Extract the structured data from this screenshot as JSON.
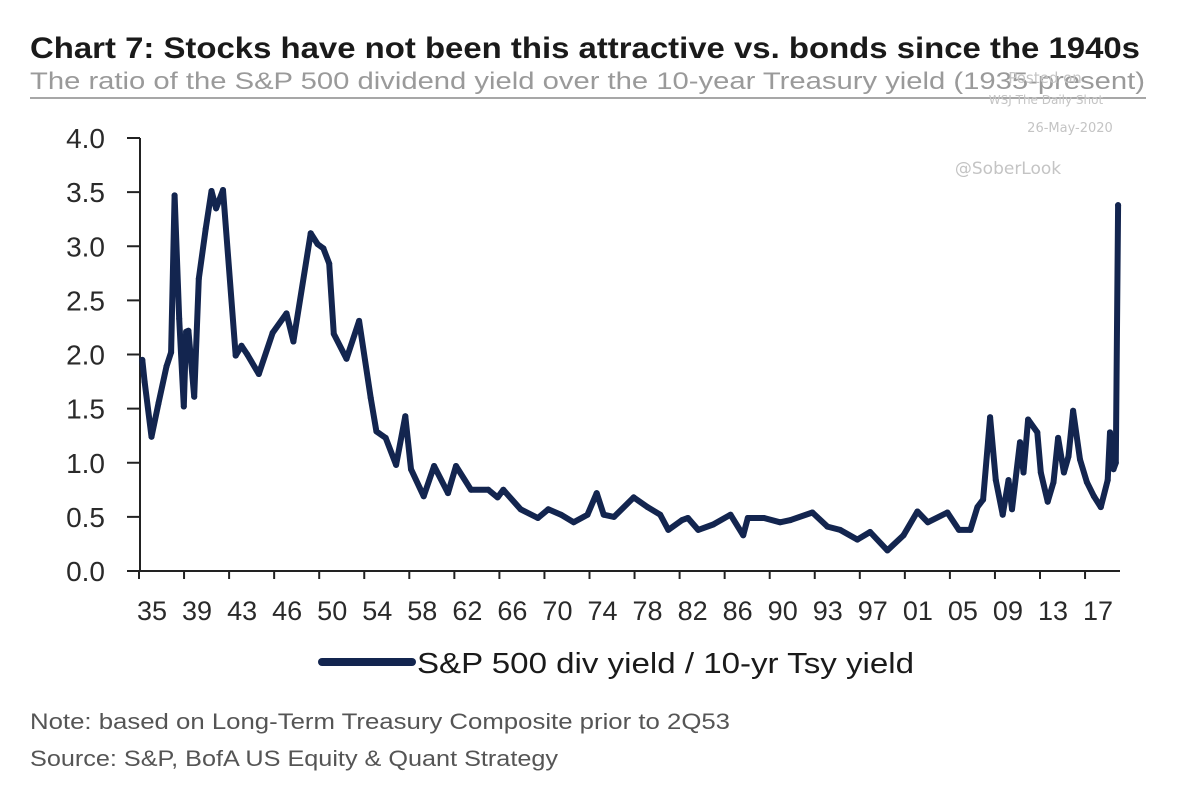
{
  "chart_data": {
    "type": "line",
    "title": "Chart 7: Stocks have not been this attractive vs. bonds since the 1940s",
    "subtitle": "The ratio of the S&P 500 dividend yield over the 10-year Treasury yield (1935-present)",
    "xlabel": "",
    "ylabel": "",
    "xlim": [
      1935,
      2020.4
    ],
    "ylim": [
      0,
      4
    ],
    "grid": false,
    "legend_position": "bottom-center",
    "y_ticks": [
      "0.0",
      "0.5",
      "1.0",
      "1.5",
      "2.0",
      "2.5",
      "3.0",
      "3.5",
      "4.0"
    ],
    "x_tick_labels": [
      "35",
      "39",
      "43",
      "46",
      "50",
      "54",
      "58",
      "62",
      "66",
      "70",
      "74",
      "78",
      "82",
      "86",
      "90",
      "93",
      "97",
      "01",
      "05",
      "09",
      "13",
      "17"
    ],
    "series": [
      {
        "name": "S&P 500 div yield / 10-yr Tsy yield",
        "color": "#13254f",
        "x": [
          1935.2,
          1935.4,
          1936.0,
          1936.6,
          1937.3,
          1937.7,
          1938.0,
          1938.4,
          1938.8,
          1939.0,
          1939.2,
          1939.7,
          1940.1,
          1940.7,
          1941.2,
          1941.6,
          1942.2,
          1943.3,
          1943.8,
          1944.3,
          1945.3,
          1946.5,
          1947.7,
          1948.3,
          1949.8,
          1950.4,
          1950.9,
          1951.4,
          1951.8,
          1952.9,
          1954.0,
          1955.0,
          1955.5,
          1956.3,
          1957.2,
          1958.0,
          1958.5,
          1959.6,
          1960.5,
          1961.7,
          1962.4,
          1963.7,
          1965.2,
          1966.0,
          1966.5,
          1968.0,
          1969.5,
          1970.4,
          1971.5,
          1972.6,
          1973.8,
          1974.6,
          1975.2,
          1976.1,
          1977.8,
          1979.0,
          1980.1,
          1980.8,
          1982.0,
          1982.5,
          1983.4,
          1984.7,
          1986.2,
          1987.3,
          1987.7,
          1989.1,
          1990.5,
          1991.4,
          1993.3,
          1994.6,
          1995.7,
          1997.2,
          1998.3,
          1999.8,
          2001.2,
          2002.4,
          2003.3,
          2005.0,
          2006.0,
          2007.0,
          2007.6,
          2008.1,
          2008.7,
          2009.2,
          2009.8,
          2010.3,
          2010.6,
          2011.3,
          2011.6,
          2012.0,
          2012.8,
          2013.1,
          2013.7,
          2014.2,
          2014.6,
          2015.1,
          2015.5,
          2015.9,
          2016.5,
          2017.1,
          2017.7,
          2018.3,
          2018.9,
          2019.1,
          2019.4,
          2019.6,
          2019.8
        ],
        "values": [
          1.95,
          1.75,
          1.24,
          1.55,
          1.89,
          2.02,
          3.47,
          2.33,
          1.52,
          2.21,
          2.22,
          1.61,
          2.7,
          3.16,
          3.51,
          3.35,
          3.52,
          1.99,
          2.08,
          2.0,
          1.82,
          2.2,
          2.38,
          2.12,
          3.12,
          3.02,
          2.98,
          2.84,
          2.19,
          1.96,
          2.31,
          1.6,
          1.29,
          1.23,
          0.98,
          1.43,
          0.94,
          0.69,
          0.97,
          0.72,
          0.97,
          0.75,
          0.75,
          0.68,
          0.75,
          0.57,
          0.49,
          0.57,
          0.52,
          0.45,
          0.52,
          0.72,
          0.52,
          0.5,
          0.68,
          0.59,
          0.52,
          0.38,
          0.47,
          0.49,
          0.38,
          0.43,
          0.52,
          0.33,
          0.49,
          0.49,
          0.45,
          0.47,
          0.54,
          0.41,
          0.38,
          0.29,
          0.36,
          0.19,
          0.33,
          0.55,
          0.45,
          0.54,
          0.38,
          0.38,
          0.59,
          0.66,
          1.42,
          0.84,
          0.52,
          0.84,
          0.57,
          1.19,
          0.91,
          1.4,
          1.28,
          0.91,
          0.64,
          0.82,
          1.23,
          0.91,
          1.06,
          1.48,
          1.03,
          0.82,
          0.69,
          0.59,
          0.84,
          1.28,
          0.94,
          1.0,
          3.38
        ]
      }
    ]
  },
  "watermark": {
    "line1": "Posted on",
    "line2": "WSJ  The Daily Shot",
    "date": "26-May-2020",
    "handle": "@SoberLook"
  },
  "notes": {
    "note": "Note: based on Long-Term Treasury Composite prior to 2Q53",
    "source": "Source: S&P, BofA US Equity & Quant Strategy"
  }
}
